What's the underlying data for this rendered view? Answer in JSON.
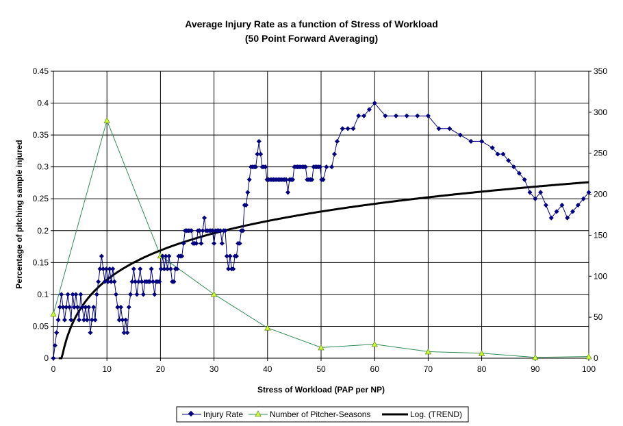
{
  "chart_data": {
    "type": "line",
    "title": "Average Injury Rate as a function of Stress of Workload",
    "subtitle": "(50 Point Forward Averaging)",
    "xlabel": "Stress of Workload (PAP per NP)",
    "ylabel": "Percentage of pitching sample injured",
    "xlim": [
      0,
      100
    ],
    "ylim": [
      0,
      0.45
    ],
    "y2lim": [
      0,
      350
    ],
    "x_ticks": [
      "0",
      "10",
      "20",
      "30",
      "40",
      "50",
      "60",
      "70",
      "80",
      "90",
      "100"
    ],
    "y_ticks": [
      "0",
      "0.05",
      "0.1",
      "0.15",
      "0.2",
      "0.25",
      "0.3",
      "0.35",
      "0.4",
      "0.45"
    ],
    "y2_ticks": [
      "0",
      "50",
      "100",
      "150",
      "200",
      "250",
      "300",
      "350"
    ],
    "grid": true,
    "legend_position": "bottom",
    "legend": [
      "Injury Rate",
      "Number of Pitcher-Seasons",
      "Log. (TREND)"
    ],
    "colors": {
      "injury": "#000080",
      "seasons": "#2e8b57",
      "seasons_marker": "#ccff33",
      "trend": "#000000"
    },
    "series": [
      {
        "name": "Injury Rate",
        "axis": "left",
        "x": [
          0,
          0.3,
          0.6,
          0.9,
          1.2,
          1.5,
          1.8,
          2.1,
          2.4,
          2.7,
          3.0,
          3.3,
          3.6,
          3.9,
          4.2,
          4.5,
          4.8,
          5.1,
          5.4,
          5.7,
          6.0,
          6.3,
          6.6,
          6.9,
          7.2,
          7.5,
          7.8,
          8.1,
          8.4,
          8.7,
          9.0,
          9.3,
          9.6,
          9.9,
          10.2,
          10.5,
          10.8,
          11.1,
          11.4,
          11.7,
          12.0,
          12.3,
          12.6,
          12.9,
          13.2,
          13.5,
          13.8,
          14.1,
          14.4,
          14.7,
          15.0,
          15.3,
          15.6,
          15.9,
          16.2,
          16.5,
          16.8,
          17.1,
          17.4,
          17.7,
          18.0,
          18.3,
          18.6,
          18.9,
          19.2,
          19.5,
          19.8,
          20.1,
          20.4,
          20.7,
          21.0,
          21.3,
          21.6,
          21.9,
          22.2,
          22.5,
          22.8,
          23.1,
          23.4,
          23.7,
          24.0,
          24.3,
          24.6,
          24.9,
          25.2,
          25.5,
          25.8,
          26.1,
          26.4,
          26.7,
          27.0,
          27.3,
          27.6,
          27.9,
          28.2,
          28.5,
          28.8,
          29.1,
          29.4,
          29.7,
          30.0,
          30.3,
          30.6,
          30.9,
          31.2,
          31.5,
          31.8,
          32.1,
          32.4,
          32.7,
          33.0,
          33.3,
          33.6,
          33.9,
          34.2,
          34.5,
          34.8,
          35.1,
          35.4,
          35.7,
          36.0,
          36.3,
          36.6,
          36.9,
          37.2,
          37.5,
          37.8,
          38.1,
          38.4,
          38.7,
          39.0,
          39.3,
          39.6,
          39.9,
          40.2,
          40.5,
          40.8,
          41.1,
          41.4,
          41.7,
          42.0,
          42.3,
          42.6,
          42.9,
          43.2,
          43.5,
          43.8,
          44.1,
          44.4,
          44.7,
          45.0,
          45.3,
          45.6,
          45.9,
          46.2,
          46.5,
          46.8,
          47.1,
          47.4,
          47.7,
          48.0,
          48.3,
          48.6,
          48.9,
          49.2,
          49.5,
          49.8,
          50.1,
          50.4,
          51.0,
          52.0,
          52.5,
          53.0,
          54.0,
          55.0,
          56.0,
          57.0,
          58.0,
          59.0,
          60.0,
          62.0,
          64.0,
          66.0,
          68.0,
          70.0,
          72.0,
          74.0,
          76.0,
          78.0,
          80.0,
          82.0,
          83.0,
          84.0,
          85.0,
          86.0,
          87.0,
          88.0,
          89.0,
          90.0,
          91.0,
          92.0,
          93.0,
          94.0,
          95.0,
          96.0,
          97.0,
          98.0,
          99.0,
          100.0
        ],
        "values": [
          0.0,
          0.02,
          0.04,
          0.06,
          0.08,
          0.1,
          0.08,
          0.06,
          0.08,
          0.1,
          0.08,
          0.06,
          0.1,
          0.08,
          0.1,
          0.08,
          0.06,
          0.1,
          0.08,
          0.06,
          0.08,
          0.06,
          0.08,
          0.04,
          0.06,
          0.08,
          0.06,
          0.1,
          0.12,
          0.14,
          0.16,
          0.14,
          0.12,
          0.14,
          0.12,
          0.14,
          0.12,
          0.14,
          0.12,
          0.1,
          0.08,
          0.06,
          0.08,
          0.06,
          0.04,
          0.06,
          0.04,
          0.08,
          0.1,
          0.12,
          0.14,
          0.12,
          0.1,
          0.12,
          0.14,
          0.12,
          0.1,
          0.12,
          0.12,
          0.12,
          0.12,
          0.14,
          0.12,
          0.1,
          0.12,
          0.12,
          0.12,
          0.14,
          0.16,
          0.14,
          0.16,
          0.14,
          0.16,
          0.14,
          0.12,
          0.12,
          0.14,
          0.14,
          0.16,
          0.16,
          0.16,
          0.18,
          0.2,
          0.2,
          0.2,
          0.2,
          0.2,
          0.18,
          0.18,
          0.18,
          0.2,
          0.2,
          0.18,
          0.2,
          0.22,
          0.2,
          0.2,
          0.2,
          0.2,
          0.2,
          0.18,
          0.2,
          0.2,
          0.2,
          0.2,
          0.18,
          0.2,
          0.2,
          0.16,
          0.14,
          0.16,
          0.14,
          0.14,
          0.16,
          0.16,
          0.18,
          0.18,
          0.2,
          0.2,
          0.24,
          0.24,
          0.26,
          0.28,
          0.3,
          0.3,
          0.3,
          0.3,
          0.32,
          0.34,
          0.32,
          0.3,
          0.3,
          0.3,
          0.28,
          0.28,
          0.28,
          0.28,
          0.28,
          0.28,
          0.28,
          0.28,
          0.28,
          0.28,
          0.28,
          0.28,
          0.28,
          0.26,
          0.28,
          0.28,
          0.28,
          0.3,
          0.3,
          0.3,
          0.3,
          0.3,
          0.3,
          0.3,
          0.3,
          0.28,
          0.28,
          0.28,
          0.28,
          0.3,
          0.3,
          0.3,
          0.3,
          0.3,
          0.28,
          0.28,
          0.3,
          0.3,
          0.32,
          0.34,
          0.36,
          0.36,
          0.36,
          0.38,
          0.38,
          0.39,
          0.4,
          0.38,
          0.38,
          0.38,
          0.38,
          0.38,
          0.36,
          0.36,
          0.35,
          0.34,
          0.34,
          0.33,
          0.32,
          0.32,
          0.31,
          0.3,
          0.29,
          0.28,
          0.26,
          0.25,
          0.26,
          0.24,
          0.22,
          0.23,
          0.24,
          0.22,
          0.23,
          0.24,
          0.25,
          0.26
        ]
      },
      {
        "name": "Number of Pitcher-Seasons",
        "axis": "right",
        "x": [
          0,
          10,
          20,
          30,
          40,
          50,
          60,
          70,
          80,
          90,
          100
        ],
        "values": [
          54,
          290,
          125,
          78,
          37,
          13,
          17,
          8,
          6,
          1,
          2
        ]
      },
      {
        "name": "Log. (TREND)",
        "axis": "left",
        "trend": "logarithmic",
        "x_start": 1,
        "x_end": 100,
        "y_at_10": 0.123,
        "y_at_100": 0.276
      }
    ]
  }
}
